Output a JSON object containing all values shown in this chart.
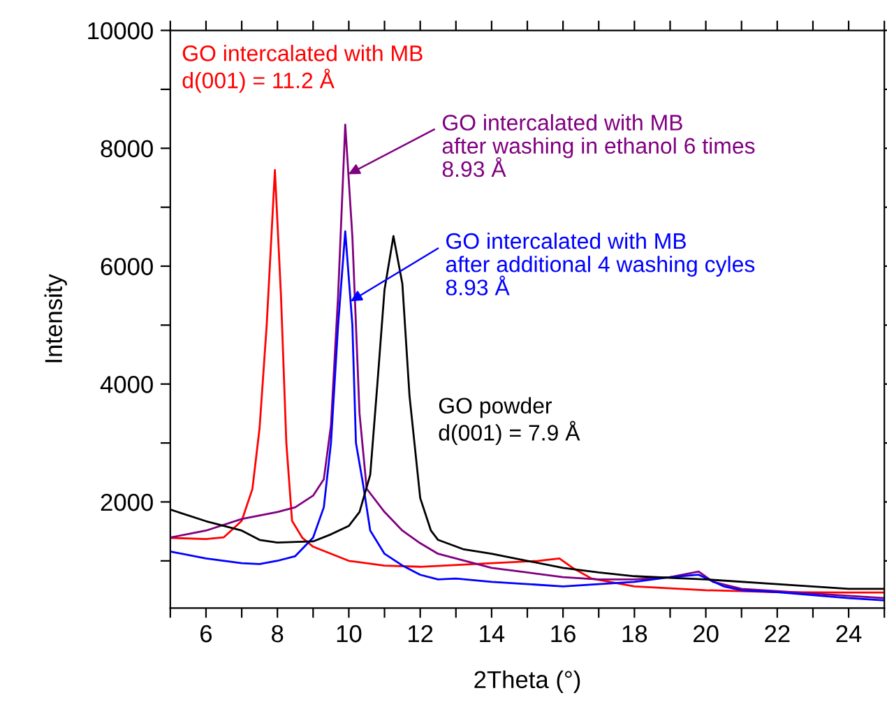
{
  "chart_data": {
    "type": "line",
    "xlabel": "2Theta (°)",
    "ylabel": "Intensity",
    "xlim": [
      5,
      25
    ],
    "ylim": [
      200,
      10000
    ],
    "xticks": [
      {
        "value": 5,
        "label": null
      },
      6,
      {
        "value": 7,
        "label": null
      },
      8,
      {
        "value": 9,
        "label": null
      },
      10,
      {
        "value": 11,
        "label": null
      },
      12,
      {
        "value": 13,
        "label": null
      },
      14,
      {
        "value": 15,
        "label": null
      },
      16,
      {
        "value": 17,
        "label": null
      },
      18,
      {
        "value": 19,
        "label": null
      },
      20,
      {
        "value": 21,
        "label": null
      },
      22,
      {
        "value": 23,
        "label": null
      },
      24,
      {
        "value": 25,
        "label": null
      }
    ],
    "yticks": [
      {
        "value": 1000,
        "label": null
      },
      2000,
      {
        "value": 3000,
        "label": null
      },
      4000,
      {
        "value": 5000,
        "label": null
      },
      6000,
      {
        "value": 7000,
        "label": null
      },
      8000,
      {
        "value": 9000,
        "label": null
      },
      10000
    ],
    "grid": false,
    "legend": "top right",
    "marker": "none",
    "line_style": "solid",
    "series": [
      {
        "name": "GO intercalated with MB\nd(001) = 11.2 Å",
        "color": "#ff0000",
        "x": [
          5,
          6,
          6.5,
          7,
          7.3,
          7.5,
          7.7,
          7.93,
          8.1,
          8.25,
          8.41,
          8.7,
          9,
          10,
          11,
          12,
          14,
          15.3,
          15.9,
          16.3,
          16.8,
          18,
          20,
          22,
          24,
          25
        ],
        "values": [
          1390,
          1370,
          1400,
          1680,
          2220,
          3250,
          5000,
          7630,
          5500,
          3000,
          1680,
          1390,
          1240,
          1000,
          920,
          900,
          960,
          1000,
          1040,
          870,
          700,
          567,
          502,
          470,
          463,
          463
        ]
      },
      {
        "name": "GO intercalated with MB\nafter washing in ethanol 6 times\n8.93 Å",
        "color": "#800080",
        "x": [
          5,
          6,
          7,
          8,
          8.5,
          9,
          9.3,
          9.5,
          9.7,
          9.9,
          10.1,
          10.3,
          10.5,
          11,
          11.5,
          12,
          12.5,
          13,
          14,
          15,
          16,
          17,
          18,
          19,
          19.8,
          20.2,
          21,
          22,
          24,
          25
        ],
        "values": [
          1396,
          1514,
          1711,
          1830,
          1909,
          2107,
          2384,
          3300,
          5500,
          8400,
          6500,
          3500,
          2225,
          1830,
          1514,
          1300,
          1120,
          1040,
          882,
          803,
          724,
          685,
          685,
          724,
          819,
          645,
          526,
          487,
          408,
          369
        ]
      },
      {
        "name": "GO intercalated with MB\nafter additional 4 washing cyles\n8.93 Å",
        "color": "#0000ff",
        "x": [
          5,
          6,
          7,
          7.5,
          8,
          8.5,
          9,
          9.3,
          9.5,
          9.7,
          9.9,
          10.1,
          10.2,
          10.4,
          10.6,
          11,
          11.5,
          12,
          12.5,
          13,
          14,
          16,
          17,
          18,
          19,
          19.8,
          20.5,
          21,
          22,
          24,
          25
        ],
        "values": [
          1159,
          1040,
          962,
          946,
          1001,
          1080,
          1396,
          1909,
          3000,
          5000,
          6590,
          5000,
          3000,
          2300,
          1514,
          1120,
          922,
          764,
          685,
          700,
          645,
          567,
          606,
          645,
          724,
          764,
          567,
          502,
          470,
          369,
          330
        ]
      },
      {
        "name": "GO powder\nd(001) = 7.9 Å",
        "color": "#000000",
        "x": [
          5,
          6,
          7,
          7.5,
          8,
          9,
          9.5,
          10,
          10.3,
          10.6,
          10.8,
          11,
          11.25,
          11.5,
          11.7,
          12,
          12.3,
          12.5,
          13.2,
          14,
          15,
          16,
          17,
          18,
          20,
          22,
          24,
          25
        ],
        "values": [
          1870,
          1673,
          1514,
          1356,
          1310,
          1330,
          1450,
          1593,
          1830,
          2460,
          4000,
          5600,
          6510,
          5700,
          3800,
          2066,
          1514,
          1356,
          1199,
          1120,
          1000,
          882,
          803,
          740,
          685,
          606,
          526,
          526
        ]
      }
    ]
  }
}
